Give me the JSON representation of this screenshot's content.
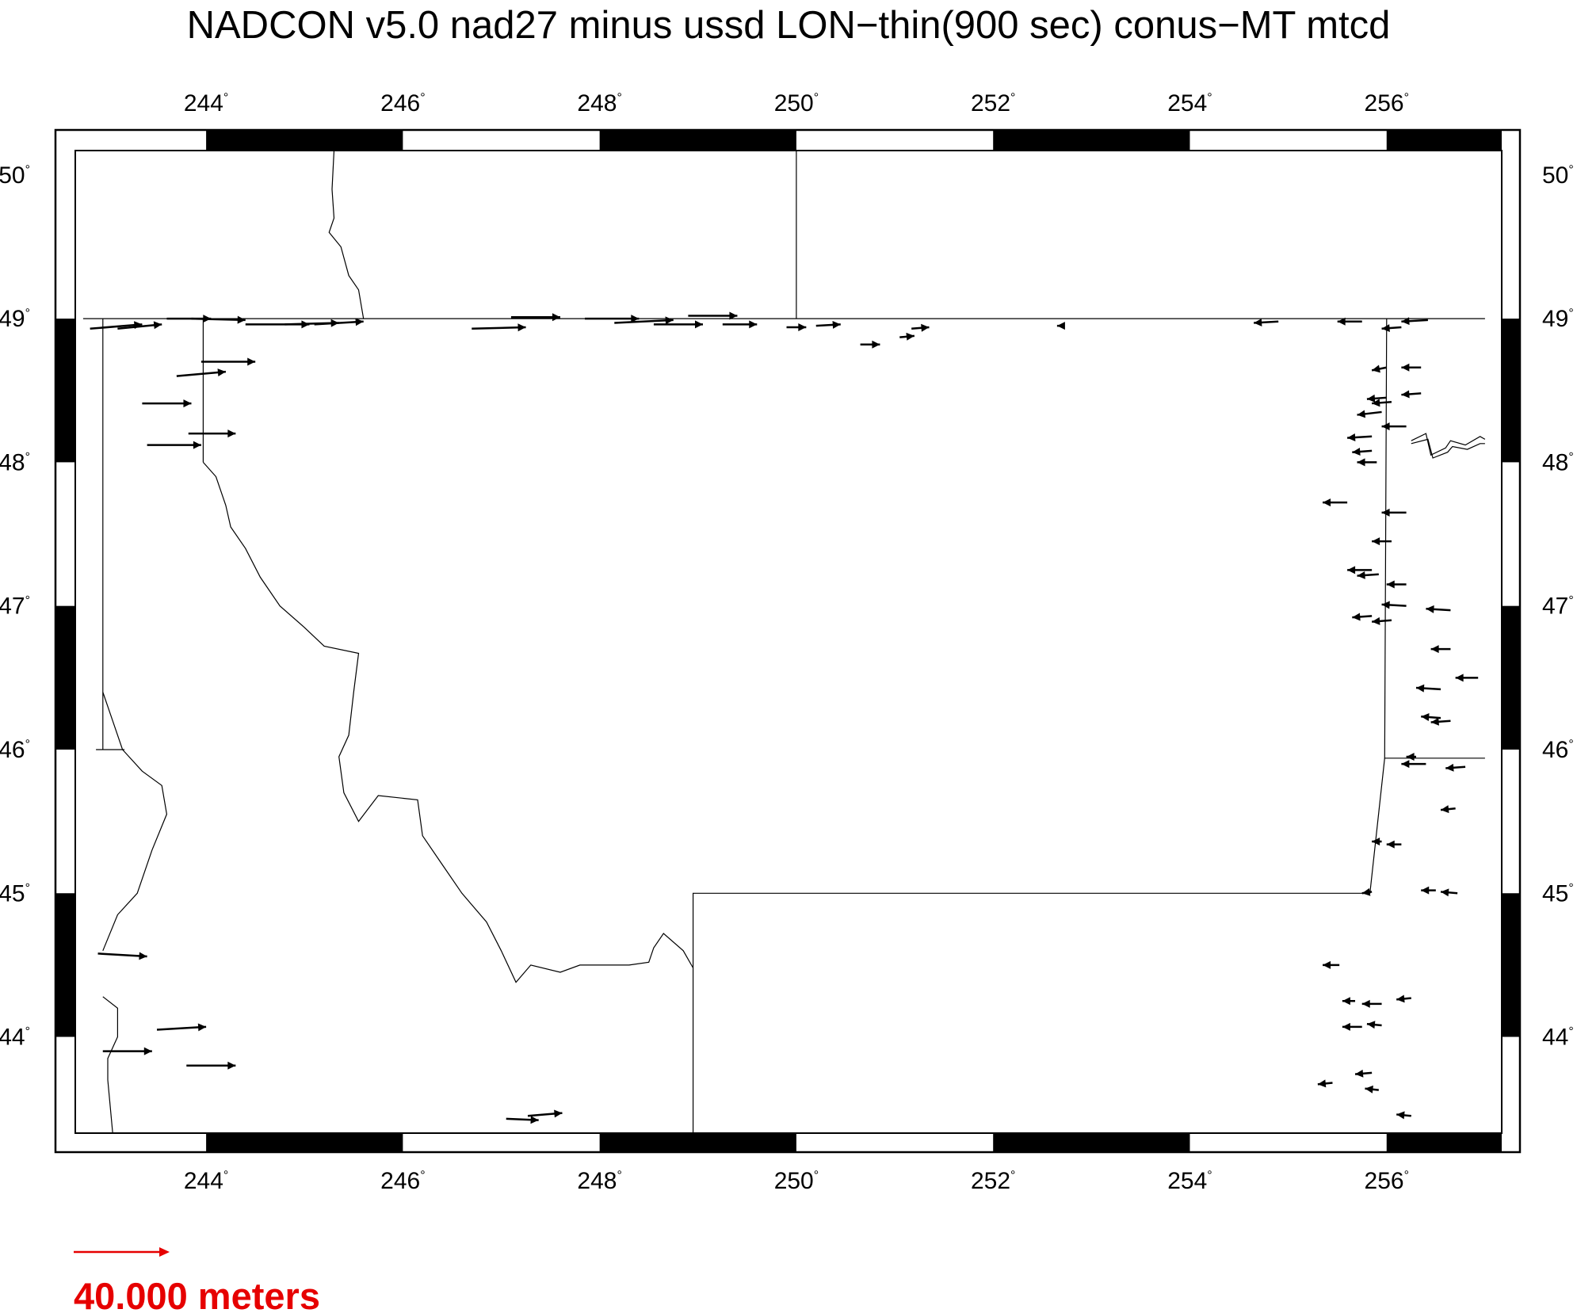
{
  "title": "NADCON v5.0 nad27 minus ussd LON−thin(900 sec) conus−MT mtcd",
  "axes": {
    "lon_ticks": [
      244,
      246,
      248,
      250,
      252,
      254,
      256
    ],
    "lat_ticks": [
      44,
      45,
      46,
      47,
      48,
      49,
      50
    ],
    "lon_range": [
      242.67,
      257.17
    ],
    "lat_range": [
      43.33,
      50.17
    ],
    "degree_symbol": "°"
  },
  "scale": {
    "label": "40.000 meters",
    "color": "#e60000"
  },
  "colors": {
    "frame": "#000000",
    "boundary": "#000000",
    "vector": "#000000"
  },
  "boundaries": [
    [
      [
        242.75,
        49.0
      ],
      [
        257.0,
        49.0
      ]
    ],
    [
      [
        250.0,
        49.0
      ],
      [
        250.0,
        50.17
      ]
    ],
    [
      [
        243.97,
        49.0
      ],
      [
        243.97,
        48.0
      ]
    ],
    [
      [
        242.95,
        49.0
      ],
      [
        242.95,
        46.0
      ]
    ],
    [
      [
        256.0,
        49.0
      ],
      [
        255.98,
        45.94
      ],
      [
        257.0,
        45.94
      ]
    ],
    [
      [
        248.95,
        44.48
      ],
      [
        248.95,
        45.0
      ],
      [
        255.83,
        45.0
      ],
      [
        255.98,
        45.94
      ]
    ],
    [
      [
        248.95,
        44.48
      ],
      [
        248.95,
        43.33
      ]
    ],
    [
      [
        242.88,
        46.0
      ],
      [
        243.17,
        46.0
      ]
    ],
    [
      [
        245.3,
        50.17
      ],
      [
        245.28,
        49.9
      ],
      [
        245.3,
        49.7
      ],
      [
        245.25,
        49.6
      ],
      [
        245.37,
        49.5
      ],
      [
        245.45,
        49.3
      ],
      [
        245.55,
        49.2
      ],
      [
        245.6,
        49.0
      ]
    ],
    [
      [
        243.97,
        48.0
      ],
      [
        244.1,
        47.9
      ],
      [
        244.2,
        47.7
      ],
      [
        244.25,
        47.55
      ],
      [
        244.4,
        47.4
      ],
      [
        244.55,
        47.2
      ],
      [
        244.75,
        47.0
      ],
      [
        245.0,
        46.85
      ],
      [
        245.2,
        46.72
      ],
      [
        245.55,
        46.67
      ],
      [
        245.5,
        46.4
      ],
      [
        245.45,
        46.1
      ],
      [
        245.35,
        45.95
      ],
      [
        245.4,
        45.7
      ],
      [
        245.55,
        45.5
      ],
      [
        245.75,
        45.68
      ],
      [
        246.15,
        45.65
      ],
      [
        246.2,
        45.4
      ],
      [
        246.4,
        45.2
      ],
      [
        246.6,
        45.0
      ],
      [
        246.85,
        44.8
      ],
      [
        247.0,
        44.6
      ],
      [
        247.15,
        44.38
      ],
      [
        247.3,
        44.5
      ],
      [
        247.6,
        44.45
      ],
      [
        247.8,
        44.5
      ],
      [
        248.1,
        44.5
      ],
      [
        248.3,
        44.5
      ],
      [
        248.5,
        44.52
      ],
      [
        248.55,
        44.62
      ],
      [
        248.65,
        44.72
      ],
      [
        248.85,
        44.6
      ],
      [
        248.95,
        44.48
      ]
    ],
    [
      [
        242.95,
        46.4
      ],
      [
        243.05,
        46.2
      ],
      [
        243.15,
        46.0
      ],
      [
        243.35,
        45.85
      ],
      [
        243.55,
        45.75
      ],
      [
        243.6,
        45.55
      ],
      [
        243.45,
        45.3
      ],
      [
        243.3,
        45.0
      ],
      [
        243.1,
        44.85
      ],
      [
        242.95,
        44.6
      ]
    ],
    [
      [
        242.95,
        44.28
      ],
      [
        243.1,
        44.2
      ],
      [
        243.1,
        44.0
      ],
      [
        243.0,
        43.85
      ],
      [
        243.0,
        43.7
      ],
      [
        243.05,
        43.33
      ]
    ],
    [
      [
        256.25,
        48.15
      ],
      [
        256.4,
        48.2
      ],
      [
        256.45,
        48.05
      ],
      [
        256.6,
        48.1
      ],
      [
        256.65,
        48.15
      ],
      [
        256.8,
        48.12
      ],
      [
        256.95,
        48.18
      ],
      [
        257.0,
        48.16
      ]
    ],
    [
      [
        256.25,
        48.13
      ],
      [
        256.42,
        48.16
      ],
      [
        256.47,
        48.03
      ],
      [
        256.62,
        48.07
      ],
      [
        256.67,
        48.11
      ],
      [
        256.82,
        48.09
      ],
      [
        256.95,
        48.13
      ],
      [
        257.0,
        48.13
      ]
    ]
  ],
  "vectors": [
    [
      242.82,
      48.93,
      243.35,
      48.96
    ],
    [
      243.1,
      48.93,
      243.55,
      48.96
    ],
    [
      243.6,
      49.0,
      244.05,
      49.0
    ],
    [
      243.85,
      49.0,
      244.4,
      48.99
    ],
    [
      244.4,
      48.96,
      245.05,
      48.96
    ],
    [
      244.8,
      48.96,
      245.35,
      48.97
    ],
    [
      245.1,
      48.96,
      245.6,
      48.98
    ],
    [
      243.7,
      48.6,
      244.2,
      48.63
    ],
    [
      243.95,
      48.7,
      244.5,
      48.7
    ],
    [
      243.35,
      48.41,
      243.85,
      48.41
    ],
    [
      243.4,
      48.12,
      243.95,
      48.12
    ],
    [
      243.82,
      48.2,
      244.3,
      48.2
    ],
    [
      242.9,
      44.58,
      243.4,
      44.56
    ],
    [
      243.5,
      44.05,
      244.0,
      44.07
    ],
    [
      242.95,
      43.9,
      243.45,
      43.9
    ],
    [
      243.8,
      43.8,
      244.3,
      43.8
    ],
    [
      247.05,
      43.43,
      247.38,
      43.42
    ],
    [
      247.27,
      43.45,
      247.62,
      43.47
    ],
    [
      246.7,
      48.93,
      247.25,
      48.94
    ],
    [
      247.1,
      49.01,
      247.6,
      49.01
    ],
    [
      247.85,
      49.0,
      248.4,
      49.0
    ],
    [
      248.15,
      48.97,
      248.75,
      48.99
    ],
    [
      248.55,
      48.96,
      249.05,
      48.96
    ],
    [
      248.9,
      49.02,
      249.4,
      49.02
    ],
    [
      249.25,
      48.96,
      249.6,
      48.96
    ],
    [
      249.9,
      48.94,
      250.1,
      48.94
    ],
    [
      250.2,
      48.95,
      250.45,
      48.96
    ],
    [
      250.65,
      48.82,
      250.85,
      48.82
    ],
    [
      251.05,
      48.87,
      251.2,
      48.88
    ],
    [
      251.17,
      48.93,
      251.35,
      48.94
    ],
    [
      252.72,
      48.95,
      252.65,
      48.95
    ],
    [
      254.9,
      48.98,
      254.65,
      48.97
    ],
    [
      255.75,
      48.98,
      255.5,
      48.98
    ],
    [
      256.15,
      48.94,
      255.95,
      48.93
    ],
    [
      256.42,
      48.99,
      256.15,
      48.98
    ],
    [
      256.0,
      48.66,
      255.85,
      48.64
    ],
    [
      256.35,
      48.66,
      256.15,
      48.66
    ],
    [
      256.0,
      48.45,
      255.8,
      48.44
    ],
    [
      256.35,
      48.48,
      256.15,
      48.47
    ],
    [
      256.05,
      48.42,
      255.85,
      48.41
    ],
    [
      255.95,
      48.35,
      255.7,
      48.33
    ],
    [
      256.2,
      48.25,
      255.95,
      48.25
    ],
    [
      255.85,
      48.18,
      255.6,
      48.17
    ],
    [
      255.85,
      48.08,
      255.65,
      48.07
    ],
    [
      255.9,
      48.0,
      255.7,
      48.0
    ],
    [
      255.6,
      47.72,
      255.35,
      47.72
    ],
    [
      256.2,
      47.65,
      255.95,
      47.65
    ],
    [
      256.05,
      47.45,
      255.85,
      47.45
    ],
    [
      255.85,
      47.25,
      255.6,
      47.25
    ],
    [
      255.92,
      47.22,
      255.7,
      47.21
    ],
    [
      256.2,
      47.15,
      256.0,
      47.15
    ],
    [
      256.2,
      47.0,
      255.95,
      47.01
    ],
    [
      255.85,
      46.93,
      255.65,
      46.92
    ],
    [
      256.05,
      46.9,
      255.85,
      46.89
    ],
    [
      256.65,
      46.97,
      256.4,
      46.98
    ],
    [
      256.65,
      46.7,
      256.45,
      46.7
    ],
    [
      256.93,
      46.5,
      256.7,
      46.5
    ],
    [
      256.55,
      46.42,
      256.3,
      46.43
    ],
    [
      256.55,
      46.22,
      256.35,
      46.23
    ],
    [
      256.65,
      46.2,
      256.45,
      46.19
    ],
    [
      256.3,
      45.95,
      256.2,
      45.95
    ],
    [
      256.4,
      45.9,
      256.15,
      45.9
    ],
    [
      256.8,
      45.88,
      256.6,
      45.87
    ],
    [
      256.7,
      45.59,
      256.55,
      45.58
    ],
    [
      255.95,
      45.36,
      255.85,
      45.36
    ],
    [
      256.15,
      45.34,
      256.0,
      45.34
    ],
    [
      255.85,
      45.01,
      255.75,
      45.0
    ],
    [
      256.5,
      45.02,
      256.35,
      45.02
    ],
    [
      256.72,
      45.0,
      256.55,
      45.01
    ],
    [
      255.52,
      44.5,
      255.35,
      44.5
    ],
    [
      255.68,
      44.25,
      255.55,
      44.25
    ],
    [
      255.95,
      44.23,
      255.75,
      44.23
    ],
    [
      256.25,
      44.27,
      256.1,
      44.26
    ],
    [
      255.75,
      44.07,
      255.55,
      44.07
    ],
    [
      255.95,
      44.08,
      255.8,
      44.09
    ],
    [
      255.85,
      43.75,
      255.68,
      43.74
    ],
    [
      255.92,
      43.63,
      255.78,
      43.64
    ],
    [
      255.45,
      43.68,
      255.3,
      43.67
    ],
    [
      256.25,
      43.45,
      256.1,
      43.46
    ]
  ]
}
